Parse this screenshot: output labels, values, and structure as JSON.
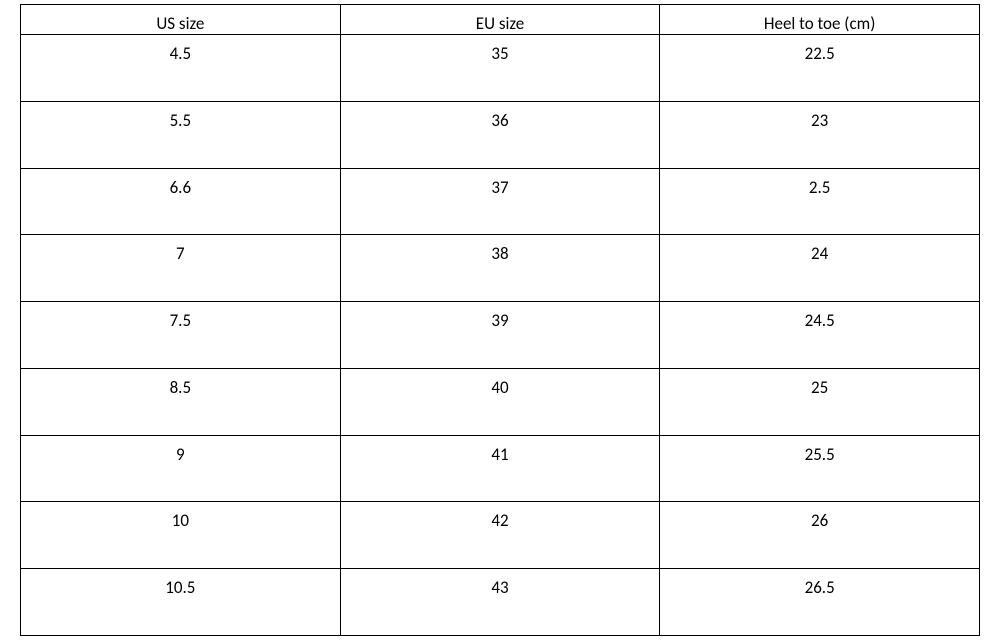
{
  "size_table": {
    "type": "table",
    "columns": [
      "US size",
      "EU size",
      "Heel to toe (cm)"
    ],
    "rows": [
      [
        "4.5",
        "35",
        "22.5"
      ],
      [
        "5.5",
        "36",
        "23"
      ],
      [
        "6.6",
        "37",
        "2.5"
      ],
      [
        "7",
        "38",
        "24"
      ],
      [
        "7.5",
        "39",
        "24.5"
      ],
      [
        "8.5",
        "40",
        "25"
      ],
      [
        "9",
        "41",
        "25.5"
      ],
      [
        "10",
        "42",
        "26"
      ],
      [
        "10.5",
        "43",
        "26.5"
      ]
    ],
    "border_color": "#000000",
    "background_color": "#ffffff",
    "text_color": "#000000",
    "font_size": 17,
    "cell_align": "center",
    "cell_valign": "top"
  }
}
